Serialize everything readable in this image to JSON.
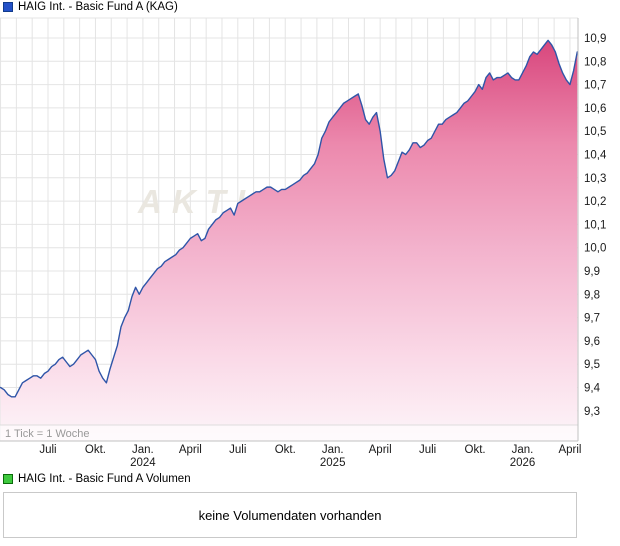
{
  "header": {
    "title": "HAIG Int. - Basic Fund A (KAG)",
    "swatch_color": "#2451c8",
    "swatch_border": "#123c8c"
  },
  "volume_section": {
    "title": "HAIG Int. - Basic Fund A Volumen",
    "swatch_color": "#3ec93e",
    "swatch_border": "#0a6b0a",
    "message": "keine Volumendaten vorhanden"
  },
  "chart_data": {
    "type": "area",
    "title": "HAIG Int. - Basic Fund A (KAG)",
    "tick_note": "1 Tick = 1 Woche",
    "watermark": "AKTIENCHECK.DE",
    "x_unit": "weeks (1 tick = 1 week), chart spans ~Apr 2023 to Apr 2026",
    "x_tick_labels": [
      [
        "Juli"
      ],
      [
        "Okt."
      ],
      [
        "Jan.",
        "2024"
      ],
      [
        "April"
      ],
      [
        "Juli"
      ],
      [
        "Okt."
      ],
      [
        "Jan.",
        "2025"
      ],
      [
        "April"
      ],
      [
        "Juli"
      ],
      [
        "Okt."
      ],
      [
        "Jan.",
        "2026"
      ],
      [
        "April"
      ]
    ],
    "x_tick_weeks": [
      13,
      26,
      39,
      52,
      65,
      78,
      91,
      104,
      117,
      130,
      143,
      156
    ],
    "months_grid_step_weeks": 4.3333,
    "y_tick_labels": [
      "10,9",
      "10,8",
      "10,7",
      "10,6",
      "10,5",
      "10,4",
      "10,3",
      "10,2",
      "10,1",
      "10,0",
      "9,9",
      "9,8",
      "9,7",
      "9,6",
      "9,5",
      "9,4",
      "9,3"
    ],
    "y_tick_values": [
      10.9,
      10.8,
      10.7,
      10.6,
      10.5,
      10.4,
      10.3,
      10.2,
      10.1,
      10.0,
      9.9,
      9.8,
      9.7,
      9.6,
      9.5,
      9.4,
      9.3
    ],
    "ylim": [
      9.17,
      10.99
    ],
    "grid": true,
    "legend_position": "top-left",
    "series": [
      {
        "name": "HAIG Int. - Basic Fund A (KAG)",
        "color": "#2f55a8",
        "values": [
          9.4,
          9.39,
          9.37,
          9.36,
          9.36,
          9.39,
          9.42,
          9.43,
          9.44,
          9.45,
          9.45,
          9.44,
          9.46,
          9.47,
          9.49,
          9.5,
          9.52,
          9.53,
          9.51,
          9.49,
          9.5,
          9.52,
          9.54,
          9.55,
          9.56,
          9.54,
          9.52,
          9.47,
          9.44,
          9.42,
          9.48,
          9.53,
          9.58,
          9.66,
          9.7,
          9.73,
          9.79,
          9.83,
          9.8,
          9.83,
          9.85,
          9.87,
          9.89,
          9.91,
          9.92,
          9.94,
          9.95,
          9.96,
          9.97,
          9.99,
          10.0,
          10.02,
          10.04,
          10.05,
          10.06,
          10.03,
          10.04,
          10.08,
          10.1,
          10.12,
          10.13,
          10.15,
          10.16,
          10.17,
          10.14,
          10.19,
          10.2,
          10.21,
          10.22,
          10.23,
          10.24,
          10.24,
          10.25,
          10.26,
          10.26,
          10.25,
          10.24,
          10.25,
          10.25,
          10.26,
          10.27,
          10.28,
          10.29,
          10.31,
          10.32,
          10.34,
          10.36,
          10.4,
          10.47,
          10.5,
          10.54,
          10.56,
          10.58,
          10.6,
          10.62,
          10.63,
          10.64,
          10.65,
          10.66,
          10.61,
          10.55,
          10.53,
          10.56,
          10.58,
          10.5,
          10.38,
          10.3,
          10.31,
          10.33,
          10.37,
          10.41,
          10.4,
          10.42,
          10.45,
          10.45,
          10.43,
          10.44,
          10.46,
          10.47,
          10.5,
          10.53,
          10.53,
          10.55,
          10.56,
          10.57,
          10.58,
          10.6,
          10.62,
          10.63,
          10.65,
          10.67,
          10.7,
          10.68,
          10.73,
          10.75,
          10.72,
          10.73,
          10.73,
          10.74,
          10.75,
          10.73,
          10.72,
          10.72,
          10.75,
          10.78,
          10.82,
          10.84,
          10.83,
          10.85,
          10.87,
          10.89,
          10.87,
          10.84,
          10.79,
          10.75,
          10.72,
          10.7,
          10.76,
          10.84
        ]
      }
    ],
    "fill_stops": [
      [
        0,
        "#d43a70"
      ],
      [
        0.1,
        "#dc5386"
      ],
      [
        0.3,
        "#ec89ad"
      ],
      [
        0.55,
        "#f3b3cd"
      ],
      [
        0.8,
        "#fad9e7"
      ],
      [
        1,
        "#fdf5f9"
      ]
    ],
    "grid_color": "#e4e4e4",
    "axis_color": "#c0c0c0",
    "tick_label_color": "#1a1a1a",
    "note_color": "#999999",
    "watermark_color": "#eae7e0"
  }
}
